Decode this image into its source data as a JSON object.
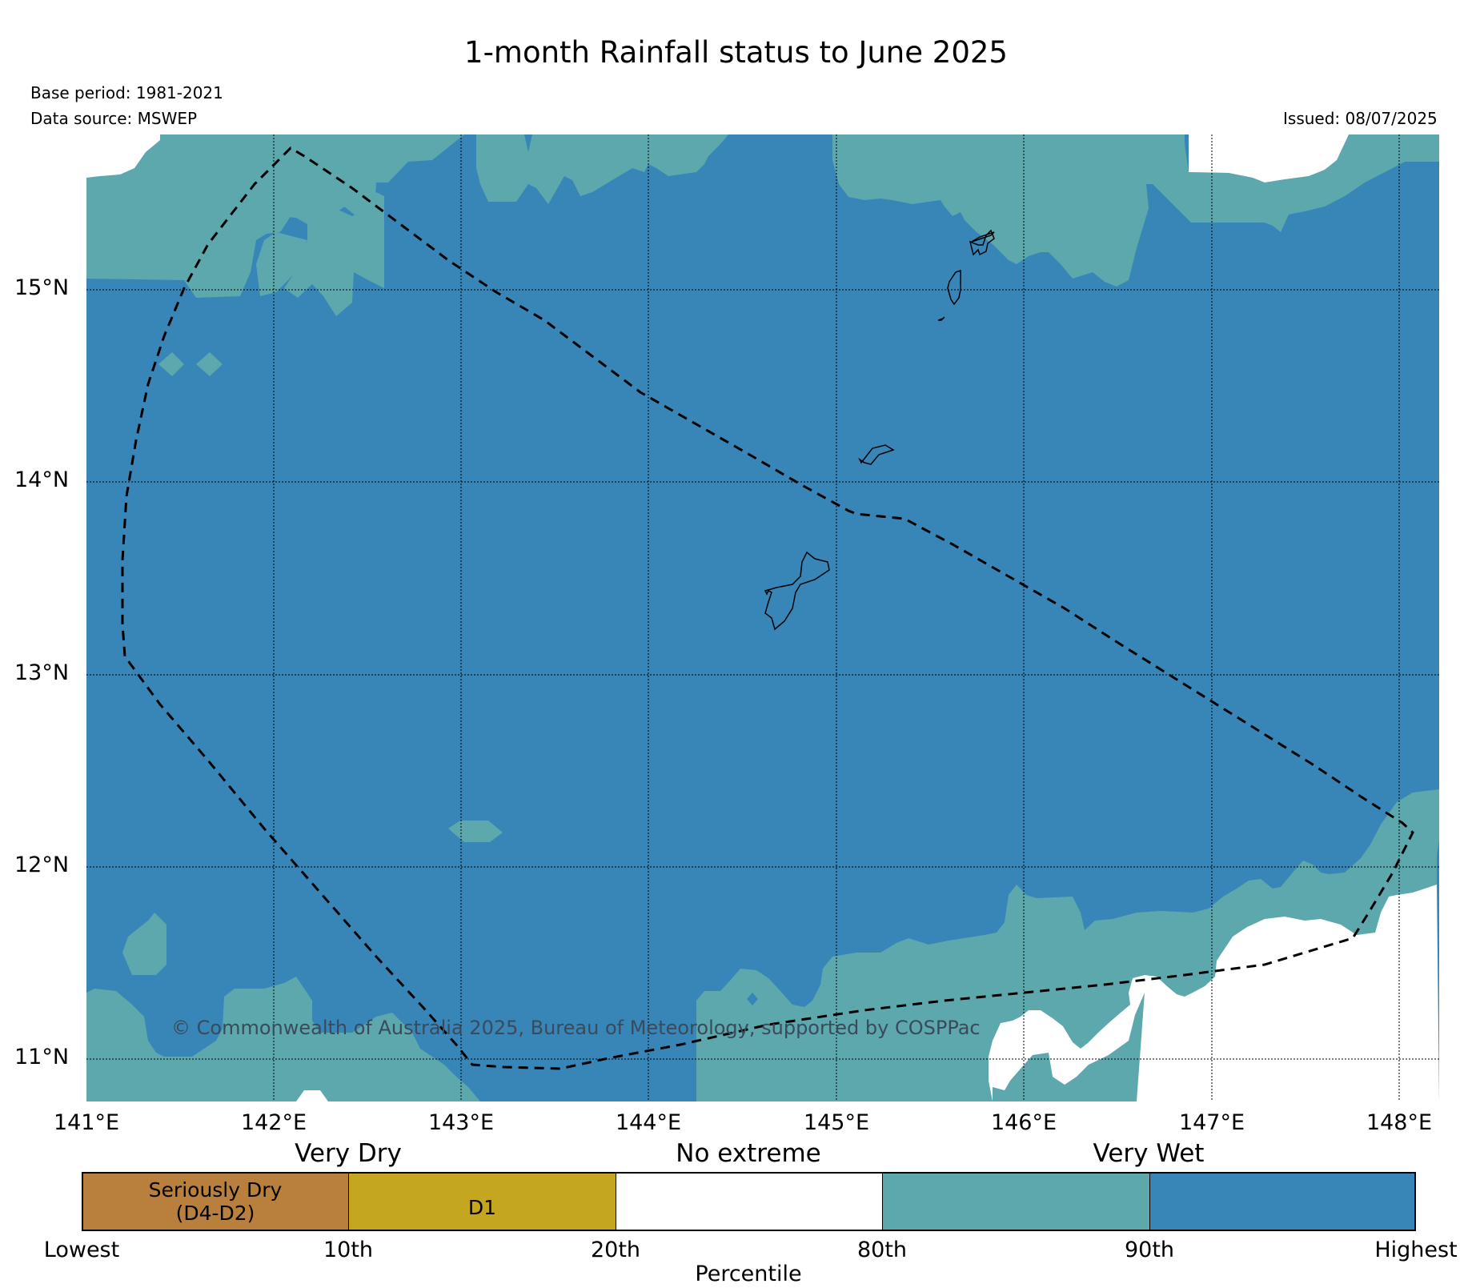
{
  "title": "1-month Rainfall status to June 2025",
  "meta": {
    "base_period": "Base period: 1981-2021",
    "data_source": "Data source: MSWEP",
    "issued": "Issued: 08/07/2025"
  },
  "map": {
    "lat_labels": [
      "15°N",
      "14°N",
      "13°N",
      "12°N",
      "11°N"
    ],
    "lon_labels": [
      "141°E",
      "142°E",
      "143°E",
      "144°E",
      "145°E",
      "146°E",
      "147°E",
      "148°E"
    ],
    "copyright": "© Commonwealth of Australia 2025, Bureau of Meteorology, supported by COSPPac",
    "colors": {
      "very_wet": "#3886b8",
      "wet_80_90": "#5ca8ad",
      "no_extreme": "#ffffff"
    },
    "features": [
      "Guam",
      "Rota",
      "Tinian",
      "Saipan",
      "dashed-boundary"
    ]
  },
  "legend": {
    "headings": {
      "very_dry": "Very Dry",
      "no_extreme": "No extreme",
      "very_wet": "Very Wet"
    },
    "boxes": [
      {
        "label_line1": "Seriously Dry",
        "label_line2": "(D4-D2)",
        "color": "#b8803c"
      },
      {
        "label_line1": "D1",
        "label_line2": "",
        "color": "#c4a620"
      },
      {
        "label_line1": "",
        "label_line2": "",
        "color": "#ffffff"
      },
      {
        "label_line1": "",
        "label_line2": "",
        "color": "#5ca8ad"
      },
      {
        "label_line1": "",
        "label_line2": "",
        "color": "#3886b8"
      }
    ],
    "ticks": [
      "Lowest",
      "10th",
      "20th",
      "80th",
      "90th",
      "Highest"
    ],
    "axis_title": "Percentile"
  }
}
